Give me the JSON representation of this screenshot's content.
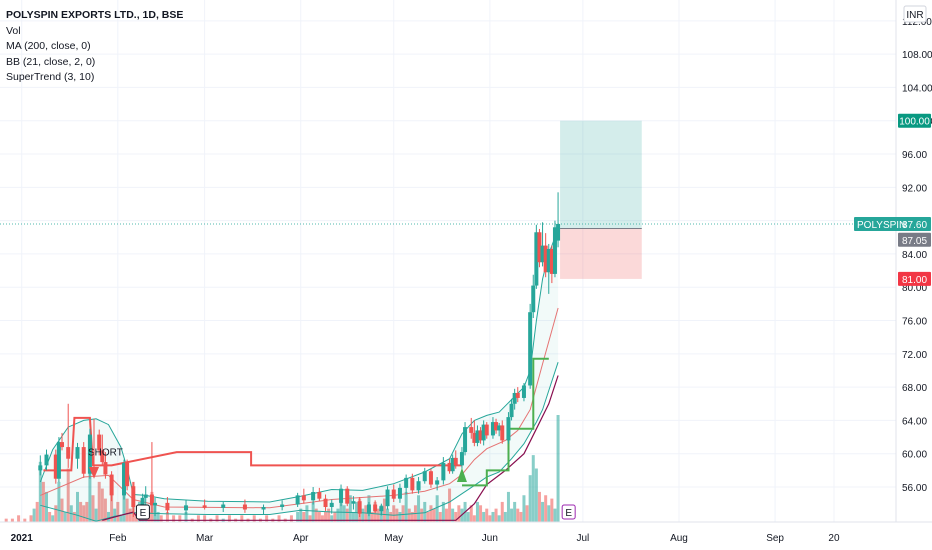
{
  "header": {
    "title": "POLYSPIN EXPORTS LTD., 1D, BSE",
    "indicators": [
      "Vol",
      "MA (200, close, 0)",
      "BB (21, close, 2, 0)",
      "SuperTrend (3, 10)"
    ]
  },
  "currency": "INR",
  "price_tags": {
    "symbol": "POLYSPIN",
    "last": "87.60",
    "entry": "87.05",
    "target": "100.00",
    "stop": "81.00"
  },
  "annotations": {
    "signal": "SHORT",
    "event_marker": "E"
  },
  "chart_data": {
    "type": "candlestick",
    "symbol": "POLYSPIN EXPORTS LTD.",
    "interval": "1D",
    "exchange": "BSE",
    "y_ticks": [
      "56.00",
      "60.00",
      "64.00",
      "68.00",
      "72.00",
      "76.00",
      "80.00",
      "84.00",
      "88.00",
      "92.00",
      "96.00",
      "100.00",
      "104.00",
      "108.00",
      "112.00"
    ],
    "ylim": [
      51.8,
      114.5
    ],
    "x_ticks": [
      {
        "label": "2021",
        "t": 0
      },
      {
        "label": "Feb",
        "t": 31
      },
      {
        "label": "Mar",
        "t": 59
      },
      {
        "label": "Apr",
        "t": 90
      },
      {
        "label": "May",
        "t": 120
      },
      {
        "label": "Jun",
        "t": 151
      },
      {
        "label": "Jul",
        "t": 181
      },
      {
        "label": "Aug",
        "t": 212
      },
      {
        "label": "Sep",
        "t": 243
      },
      {
        "label": "20",
        "t": 262
      }
    ],
    "xlim": [
      -7,
      282
    ],
    "candles": [
      [
        6,
        58.0,
        59.8,
        57.4,
        58.6
      ],
      [
        8,
        58.6,
        60.5,
        58.0,
        59.9
      ],
      [
        11,
        59.9,
        60.5,
        56.4,
        57.0
      ],
      [
        12,
        57.0,
        62.0,
        56.6,
        61.4
      ],
      [
        13,
        61.4,
        62.5,
        60.4,
        60.8
      ],
      [
        15,
        60.8,
        66.0,
        58.3,
        59.4
      ],
      [
        18,
        59.4,
        61.3,
        58.2,
        60.8
      ],
      [
        20,
        60.8,
        61.4,
        57.1,
        57.6
      ],
      [
        22,
        57.6,
        63.0,
        57.0,
        62.3
      ],
      [
        25,
        62.3,
        62.9,
        59.8,
        60.4
      ],
      [
        26,
        60.4,
        62.3,
        58.6,
        59.0
      ],
      [
        27,
        59.0,
        60.2,
        57.0,
        57.5
      ],
      [
        29,
        57.5,
        57.9,
        54.3,
        55.0
      ],
      [
        33,
        55.0,
        59.3,
        54.5,
        58.9
      ],
      [
        34,
        58.9,
        59.3,
        55.6,
        56.1
      ],
      [
        36,
        56.1,
        56.6,
        52.4,
        53.6
      ],
      [
        39,
        53.6,
        55.2,
        53.0,
        54.7
      ],
      [
        40,
        54.7,
        56.1,
        53.8,
        55.1
      ],
      [
        42,
        55.1,
        61.4,
        52.9,
        53.8
      ],
      [
        43,
        53.8,
        54.7,
        52.5,
        54.1
      ],
      [
        47,
        54.1,
        54.8,
        52.8,
        53.2
      ],
      [
        53,
        53.2,
        54.4,
        52.7,
        53.8
      ],
      [
        59,
        53.8,
        54.5,
        53.3,
        53.5
      ],
      [
        65,
        53.5,
        54.2,
        53.0,
        53.9
      ],
      [
        72,
        53.9,
        54.5,
        52.9,
        53.3
      ],
      [
        78,
        53.3,
        53.9,
        52.7,
        53.6
      ],
      [
        84,
        53.6,
        54.4,
        53.2,
        53.9
      ],
      [
        89,
        53.9,
        55.3,
        53.6,
        55.0
      ],
      [
        91,
        55.0,
        55.8,
        54.0,
        54.4
      ],
      [
        94,
        54.4,
        56.0,
        53.9,
        55.4
      ],
      [
        96,
        55.4,
        55.9,
        54.3,
        54.6
      ],
      [
        98,
        54.6,
        55.1,
        53.1,
        53.6
      ],
      [
        100,
        53.6,
        54.5,
        52.8,
        54.1
      ],
      [
        103,
        54.1,
        56.3,
        53.7,
        55.8
      ],
      [
        105,
        55.8,
        56.1,
        53.7,
        54.0
      ],
      [
        107,
        54.0,
        54.9,
        53.3,
        54.3
      ],
      [
        109,
        54.3,
        54.8,
        52.4,
        52.8
      ],
      [
        112,
        52.8,
        54.2,
        52.5,
        53.9
      ],
      [
        114,
        53.9,
        54.4,
        52.9,
        53.1
      ],
      [
        116,
        53.1,
        54.0,
        52.6,
        53.7
      ],
      [
        118,
        53.7,
        56.1,
        53.3,
        55.7
      ],
      [
        120,
        55.7,
        56.3,
        54.2,
        54.6
      ],
      [
        122,
        54.6,
        56.4,
        54.1,
        55.9
      ],
      [
        124,
        55.9,
        57.5,
        55.1,
        57.1
      ],
      [
        126,
        57.1,
        57.6,
        55.2,
        55.6
      ],
      [
        128,
        55.6,
        57.2,
        55.2,
        56.7
      ],
      [
        130,
        56.7,
        58.3,
        56.4,
        57.9
      ],
      [
        132,
        57.9,
        58.2,
        55.9,
        56.3
      ],
      [
        134,
        56.3,
        57.2,
        55.6,
        56.8
      ],
      [
        136,
        56.8,
        59.6,
        56.3,
        58.9
      ],
      [
        138,
        58.9,
        59.4,
        57.6,
        57.9
      ],
      [
        139,
        57.9,
        59.9,
        57.6,
        59.5
      ],
      [
        140,
        59.5,
        60.4,
        58.2,
        58.6
      ],
      [
        142,
        58.6,
        60.8,
        58.2,
        60.2
      ],
      [
        143,
        60.2,
        63.8,
        59.8,
        63.2
      ],
      [
        145,
        63.2,
        64.3,
        61.8,
        62.5
      ],
      [
        146,
        62.5,
        64.0,
        60.9,
        61.3
      ],
      [
        147,
        61.3,
        63.4,
        60.9,
        62.8
      ],
      [
        148,
        62.8,
        63.2,
        61.2,
        61.6
      ],
      [
        149,
        61.6,
        64.0,
        61.0,
        63.5
      ],
      [
        150,
        63.5,
        63.8,
        61.8,
        62.2
      ],
      [
        152,
        62.2,
        64.4,
        61.8,
        63.8
      ],
      [
        153,
        63.8,
        64.2,
        62.4,
        62.8
      ],
      [
        154,
        62.8,
        63.7,
        62.1,
        63.4
      ],
      [
        155,
        63.4,
        64.0,
        61.2,
        61.6
      ],
      [
        157,
        61.6,
        65.0,
        61.2,
        64.4
      ],
      [
        158,
        64.4,
        66.6,
        64.0,
        66.0
      ],
      [
        159,
        66.0,
        67.8,
        65.3,
        67.3
      ],
      [
        160,
        67.3,
        68.0,
        66.2,
        66.7
      ],
      [
        162,
        66.7,
        68.5,
        66.3,
        68.2
      ],
      [
        164,
        68.2,
        78.0,
        67.8,
        77.0
      ],
      [
        165,
        77.0,
        81.5,
        76.3,
        80.2
      ],
      [
        166,
        80.2,
        87.5,
        79.8,
        86.6
      ],
      [
        167,
        86.6,
        87.0,
        82.4,
        83.0
      ],
      [
        168,
        83.0,
        87.8,
        82.5,
        85.0
      ],
      [
        169,
        85.0,
        86.5,
        81.2,
        81.8
      ],
      [
        170,
        81.8,
        85.2,
        79.2,
        84.6
      ],
      [
        171,
        84.6,
        85.0,
        80.5,
        81.6
      ],
      [
        172,
        81.6,
        88.0,
        81.2,
        87.2
      ],
      [
        173,
        85.6,
        91.4,
        84.8,
        87.6
      ]
    ],
    "volume": [
      [
        -5,
        1
      ],
      [
        -3,
        1
      ],
      [
        -1,
        2
      ],
      [
        1,
        1
      ],
      [
        3,
        2
      ],
      [
        4,
        4
      ],
      [
        5,
        6
      ],
      [
        6,
        18
      ],
      [
        7,
        12
      ],
      [
        8,
        9
      ],
      [
        9,
        3
      ],
      [
        10,
        2
      ],
      [
        11,
        5
      ],
      [
        12,
        12
      ],
      [
        13,
        7
      ],
      [
        14,
        3
      ],
      [
        15,
        16
      ],
      [
        16,
        5
      ],
      [
        17,
        3
      ],
      [
        18,
        9
      ],
      [
        19,
        6
      ],
      [
        20,
        5
      ],
      [
        21,
        6
      ],
      [
        22,
        16
      ],
      [
        23,
        8
      ],
      [
        24,
        4
      ],
      [
        25,
        12
      ],
      [
        26,
        10
      ],
      [
        27,
        7
      ],
      [
        28,
        3
      ],
      [
        29,
        14
      ],
      [
        30,
        4
      ],
      [
        31,
        6
      ],
      [
        32,
        2
      ],
      [
        33,
        10
      ],
      [
        34,
        7
      ],
      [
        35,
        4
      ],
      [
        36,
        12
      ],
      [
        37,
        3
      ],
      [
        38,
        6
      ],
      [
        39,
        3
      ],
      [
        40,
        5
      ],
      [
        41,
        3
      ],
      [
        42,
        9
      ],
      [
        43,
        5
      ],
      [
        44,
        3
      ],
      [
        45,
        2
      ],
      [
        47,
        3
      ],
      [
        49,
        2
      ],
      [
        51,
        2
      ],
      [
        53,
        3
      ],
      [
        55,
        1
      ],
      [
        57,
        2
      ],
      [
        59,
        2
      ],
      [
        61,
        1
      ],
      [
        63,
        2
      ],
      [
        65,
        1
      ],
      [
        67,
        2
      ],
      [
        69,
        1
      ],
      [
        71,
        2
      ],
      [
        73,
        1
      ],
      [
        75,
        2
      ],
      [
        77,
        1
      ],
      [
        79,
        2
      ],
      [
        81,
        1
      ],
      [
        83,
        2
      ],
      [
        85,
        1
      ],
      [
        87,
        2
      ],
      [
        89,
        3
      ],
      [
        90,
        4
      ],
      [
        91,
        3
      ],
      [
        92,
        5
      ],
      [
        93,
        2
      ],
      [
        94,
        6
      ],
      [
        95,
        4
      ],
      [
        96,
        3
      ],
      [
        97,
        2
      ],
      [
        98,
        3
      ],
      [
        99,
        4
      ],
      [
        100,
        2
      ],
      [
        101,
        3
      ],
      [
        102,
        4
      ],
      [
        103,
        9
      ],
      [
        104,
        5
      ],
      [
        105,
        4
      ],
      [
        106,
        8
      ],
      [
        107,
        3
      ],
      [
        108,
        6
      ],
      [
        109,
        7
      ],
      [
        110,
        4
      ],
      [
        111,
        5
      ],
      [
        112,
        8
      ],
      [
        113,
        3
      ],
      [
        114,
        6
      ],
      [
        115,
        4
      ],
      [
        116,
        5
      ],
      [
        117,
        7
      ],
      [
        118,
        4
      ],
      [
        119,
        3
      ],
      [
        120,
        5
      ],
      [
        121,
        4
      ],
      [
        122,
        3
      ],
      [
        123,
        5
      ],
      [
        124,
        9
      ],
      [
        125,
        4
      ],
      [
        126,
        3
      ],
      [
        127,
        5
      ],
      [
        128,
        8
      ],
      [
        129,
        4
      ],
      [
        130,
        6
      ],
      [
        131,
        3
      ],
      [
        132,
        5
      ],
      [
        133,
        4
      ],
      [
        134,
        8
      ],
      [
        135,
        3
      ],
      [
        136,
        6
      ],
      [
        137,
        4
      ],
      [
        138,
        10
      ],
      [
        139,
        4
      ],
      [
        140,
        3
      ],
      [
        141,
        5
      ],
      [
        142,
        4
      ],
      [
        143,
        6
      ],
      [
        144,
        3
      ],
      [
        145,
        5
      ],
      [
        146,
        2
      ],
      [
        147,
        6
      ],
      [
        148,
        5
      ],
      [
        149,
        3
      ],
      [
        150,
        4
      ],
      [
        151,
        2
      ],
      [
        152,
        3
      ],
      [
        153,
        4
      ],
      [
        154,
        2
      ],
      [
        155,
        6
      ],
      [
        156,
        3
      ],
      [
        157,
        9
      ],
      [
        158,
        4
      ],
      [
        159,
        6
      ],
      [
        160,
        4
      ],
      [
        161,
        3
      ],
      [
        162,
        8
      ],
      [
        163,
        5
      ],
      [
        164,
        14
      ],
      [
        165,
        20
      ],
      [
        166,
        16
      ],
      [
        167,
        9
      ],
      [
        168,
        6
      ],
      [
        169,
        8
      ],
      [
        170,
        5
      ],
      [
        171,
        7
      ],
      [
        172,
        4
      ],
      [
        173,
        32
      ]
    ],
    "supertrend_down": [
      [
        7,
        58.0
      ],
      [
        16,
        58.0
      ],
      [
        17,
        64.3
      ],
      [
        22,
        64.3
      ],
      [
        23,
        58.6
      ],
      [
        29,
        58.6
      ],
      [
        50,
        60.2
      ],
      [
        74,
        60.2
      ],
      [
        74,
        58.6
      ],
      [
        142,
        58.6
      ]
    ],
    "supertrend_up": [
      [
        142,
        56.2
      ],
      [
        150,
        56.2
      ],
      [
        150,
        58.0
      ],
      [
        157,
        58.0
      ],
      [
        157,
        63.0
      ],
      [
        165,
        63.0
      ],
      [
        165,
        71.4
      ],
      [
        170,
        71.4
      ]
    ],
    "bb_upper": [
      [
        6,
        56.6
      ],
      [
        10,
        60.5
      ],
      [
        15,
        63.2
      ],
      [
        20,
        64.0
      ],
      [
        24,
        64.2
      ],
      [
        28,
        63.5
      ],
      [
        32,
        60.8
      ],
      [
        34,
        58.3
      ],
      [
        36,
        55.1
      ],
      [
        40,
        55.0
      ],
      [
        46,
        54.6
      ],
      [
        60,
        54.3
      ],
      [
        80,
        54.2
      ],
      [
        90,
        54.9
      ],
      [
        100,
        55.7
      ],
      [
        110,
        55.6
      ],
      [
        120,
        56.4
      ],
      [
        130,
        57.8
      ],
      [
        138,
        59.4
      ],
      [
        142,
        62.4
      ],
      [
        146,
        64.0
      ],
      [
        150,
        64.6
      ],
      [
        154,
        65.0
      ],
      [
        158,
        66.5
      ],
      [
        162,
        68.0
      ],
      [
        164,
        70.0
      ],
      [
        166,
        76.0
      ],
      [
        168,
        81.0
      ],
      [
        170,
        84.0
      ],
      [
        173,
        87.0
      ]
    ],
    "bb_lower": [
      [
        6,
        53.8
      ],
      [
        12,
        53.2
      ],
      [
        18,
        52.6
      ],
      [
        24,
        51.9
      ],
      [
        30,
        52.5
      ],
      [
        36,
        52.9
      ],
      [
        46,
        52.8
      ],
      [
        60,
        52.7
      ],
      [
        80,
        52.7
      ],
      [
        90,
        53.2
      ],
      [
        100,
        53.0
      ],
      [
        110,
        52.9
      ],
      [
        120,
        52.6
      ],
      [
        130,
        52.9
      ],
      [
        138,
        54.2
      ],
      [
        142,
        55.2
      ],
      [
        146,
        56.2
      ],
      [
        150,
        57.2
      ],
      [
        154,
        57.8
      ],
      [
        158,
        59.4
      ],
      [
        162,
        61.2
      ],
      [
        164,
        62.5
      ],
      [
        166,
        63.8
      ],
      [
        168,
        65.3
      ],
      [
        170,
        67.6
      ],
      [
        173,
        71.0
      ]
    ],
    "bb_basis": [
      [
        6,
        55.0
      ],
      [
        20,
        57.2
      ],
      [
        28,
        57.4
      ],
      [
        36,
        54.5
      ],
      [
        46,
        53.6
      ],
      [
        80,
        53.5
      ],
      [
        100,
        54.5
      ],
      [
        120,
        55.0
      ],
      [
        130,
        55.5
      ],
      [
        138,
        56.4
      ],
      [
        142,
        57.5
      ],
      [
        146,
        59.3
      ],
      [
        150,
        60.6
      ],
      [
        156,
        61.6
      ],
      [
        160,
        62.8
      ],
      [
        164,
        65.3
      ],
      [
        168,
        70.8
      ],
      [
        173,
        77.5
      ]
    ],
    "ma200": [
      [
        26,
        52.0
      ],
      [
        36,
        53.0
      ],
      [
        38,
        52.0
      ],
      [
        140,
        52.0
      ],
      [
        146,
        54.0
      ],
      [
        150,
        56.3
      ],
      [
        156,
        58.0
      ],
      [
        162,
        60.0
      ],
      [
        166,
        63.0
      ],
      [
        170,
        66.0
      ],
      [
        173,
        69.4
      ]
    ],
    "position": {
      "start": 173,
      "end": 200,
      "entry": 87.05,
      "target": 100.0,
      "stop": 81.0
    },
    "last_price": 87.6
  }
}
